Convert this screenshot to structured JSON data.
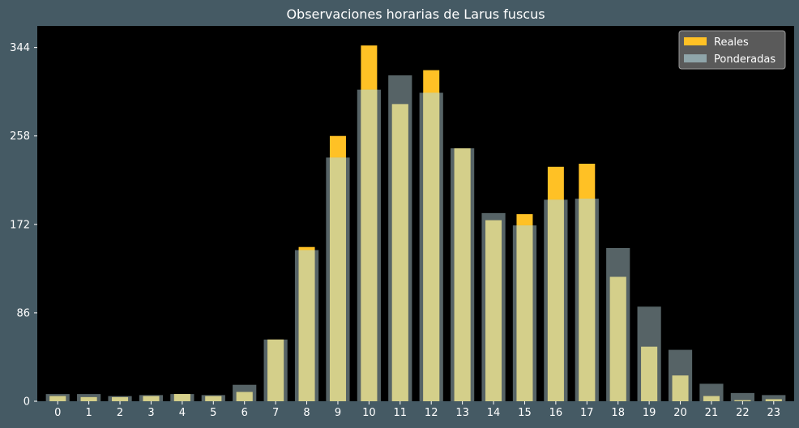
{
  "chart_data": {
    "type": "bar",
    "title": "Observaciones horarias de Larus fuscus",
    "xlabel": "",
    "ylabel": "",
    "categories": [
      "0",
      "1",
      "2",
      "3",
      "4",
      "5",
      "6",
      "7",
      "8",
      "9",
      "10",
      "11",
      "12",
      "13",
      "14",
      "15",
      "16",
      "17",
      "18",
      "19",
      "20",
      "21",
      "22",
      "23"
    ],
    "yticks": [
      0,
      86,
      172,
      258,
      344
    ],
    "ylim": [
      0,
      365
    ],
    "grid": false,
    "legend_position": "top-right",
    "series": [
      {
        "name": "Reales",
        "color": "#ffc125",
        "values": [
          5,
          4,
          4,
          5,
          7,
          5,
          9,
          60,
          150,
          258,
          346,
          289,
          322,
          246,
          176,
          182,
          228,
          231,
          121,
          53,
          25,
          5,
          1,
          2
        ]
      },
      {
        "name": "Ponderadas",
        "color": "#8fa5aa",
        "values": [
          7,
          7,
          5,
          6,
          7,
          6,
          16,
          60,
          147,
          237,
          303,
          317,
          300,
          246,
          183,
          171,
          196,
          197,
          149,
          92,
          50,
          17,
          8,
          6
        ]
      }
    ]
  },
  "colors": {
    "background": "#455a64",
    "plot_area": "#000000",
    "overlap": "#d4cf8a",
    "ponderadas_bar": "#56696d"
  }
}
